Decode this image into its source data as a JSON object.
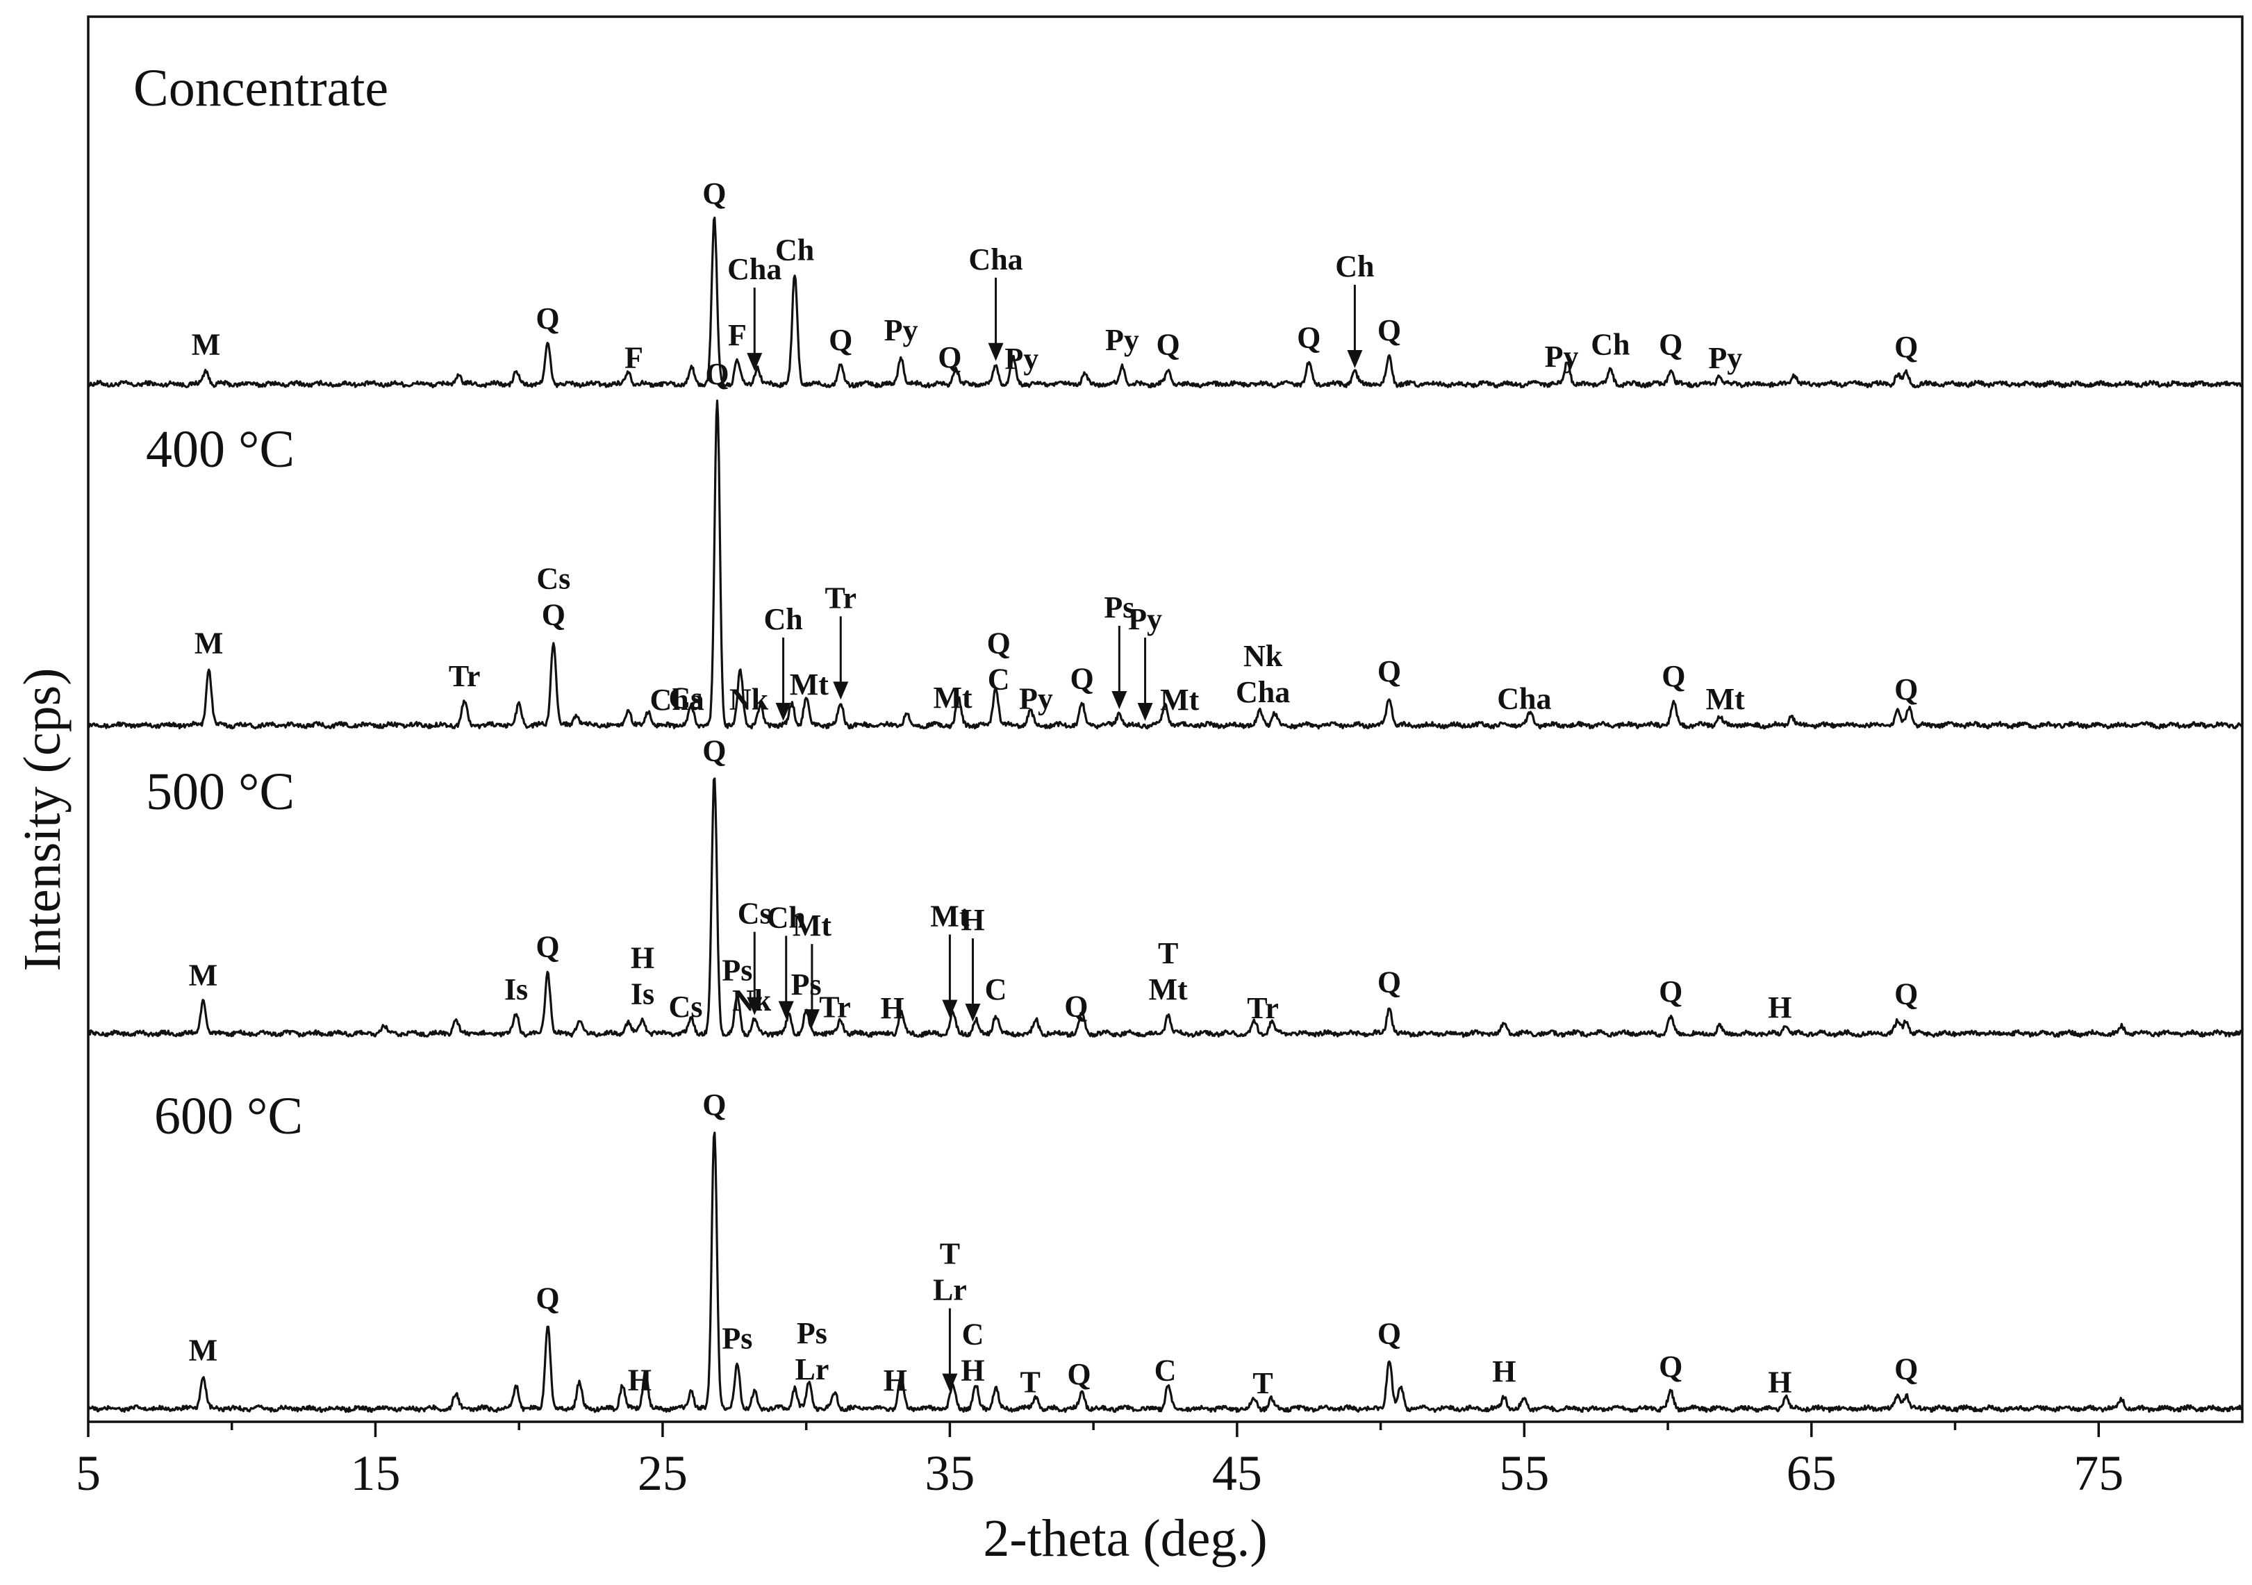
{
  "chart_data": {
    "type": "line",
    "xlabel": "2-theta (deg.)",
    "ylabel": "Intensity (cps)",
    "xlim": [
      5,
      80
    ],
    "x_ticks": [
      "5",
      "15",
      "25",
      "35",
      "45",
      "55",
      "65",
      "75"
    ],
    "grid": false,
    "legend": "none",
    "series": [
      {
        "name": "Concentrate",
        "peaks": [
          [
            9.1,
            0.6
          ],
          [
            17.9,
            0.4
          ],
          [
            19.9,
            0.5
          ],
          [
            21.0,
            1.7
          ],
          [
            23.8,
            0.6
          ],
          [
            26.0,
            0.7
          ],
          [
            26.8,
            7.0
          ],
          [
            27.6,
            1.0
          ],
          [
            28.3,
            0.7
          ],
          [
            29.6,
            4.6
          ],
          [
            31.2,
            0.8
          ],
          [
            33.3,
            1.2
          ],
          [
            35.2,
            0.7
          ],
          [
            36.6,
            0.8
          ],
          [
            37.2,
            1.1
          ],
          [
            39.7,
            0.4
          ],
          [
            41.0,
            0.8
          ],
          [
            42.6,
            0.6
          ],
          [
            47.5,
            0.9
          ],
          [
            49.1,
            0.5
          ],
          [
            50.3,
            1.2
          ],
          [
            56.5,
            1.0
          ],
          [
            58.0,
            0.6
          ],
          [
            60.1,
            0.6
          ],
          [
            61.8,
            0.4
          ],
          [
            64.4,
            0.4
          ],
          [
            68.0,
            0.4
          ],
          [
            68.3,
            0.5
          ]
        ],
        "labels": [
          {
            "text": "M",
            "x": 9.1
          },
          {
            "text": "Q",
            "x": 21.0
          },
          {
            "text": "F",
            "x": 24.0
          },
          {
            "text": "Q",
            "x": 26.8
          },
          {
            "text": "F",
            "x": 27.6
          },
          {
            "text": "Cha",
            "x": 28.2,
            "arrow": true
          },
          {
            "text": "Ch",
            "x": 29.6
          },
          {
            "text": "Q",
            "x": 31.2
          },
          {
            "text": "Py",
            "x": 33.3
          },
          {
            "text": "Q",
            "x": 35.0
          },
          {
            "text": "Cha",
            "x": 36.6,
            "arrow": true
          },
          {
            "text": "Py",
            "x": 37.5
          },
          {
            "text": "Py",
            "x": 41.0
          },
          {
            "text": "Q",
            "x": 42.6
          },
          {
            "text": "Q",
            "x": 47.5
          },
          {
            "text": "Ch",
            "x": 49.1,
            "arrow": true
          },
          {
            "text": "Q",
            "x": 50.3
          },
          {
            "text": "Py",
            "x": 56.3
          },
          {
            "text": "Ch",
            "x": 58.0
          },
          {
            "text": "Q",
            "x": 60.1
          },
          {
            "text": "Py",
            "x": 62.0
          },
          {
            "text": "Q",
            "x": 68.3
          }
        ]
      },
      {
        "name": "400 °C",
        "peaks": [
          [
            9.2,
            2.4
          ],
          [
            18.1,
            1.0
          ],
          [
            20.0,
            0.9
          ],
          [
            21.2,
            3.6
          ],
          [
            22.0,
            0.5
          ],
          [
            23.8,
            0.7
          ],
          [
            24.5,
            0.6
          ],
          [
            26.0,
            0.8
          ],
          [
            26.9,
            13.8
          ],
          [
            27.7,
            2.3
          ],
          [
            28.4,
            0.8
          ],
          [
            29.5,
            0.9
          ],
          [
            30.0,
            1.2
          ],
          [
            31.2,
            0.9
          ],
          [
            33.5,
            0.5
          ],
          [
            35.3,
            1.1
          ],
          [
            36.6,
            1.6
          ],
          [
            37.8,
            0.6
          ],
          [
            39.6,
            0.9
          ],
          [
            40.9,
            0.5
          ],
          [
            42.5,
            0.9
          ],
          [
            45.8,
            0.6
          ],
          [
            46.3,
            0.5
          ],
          [
            50.3,
            1.2
          ],
          [
            55.2,
            0.5
          ],
          [
            60.2,
            1.0
          ],
          [
            61.8,
            0.4
          ],
          [
            64.3,
            0.4
          ],
          [
            68.0,
            0.6
          ],
          [
            68.4,
            0.8
          ]
        ],
        "labels": [
          {
            "text": "M",
            "x": 9.2
          },
          {
            "text": "Tr",
            "x": 18.1
          },
          {
            "text": "Cs",
            "x": 21.2,
            "second": "Q"
          },
          {
            "text": "Cha",
            "x": 25.5
          },
          {
            "text": "Cs",
            "x": 25.8
          },
          {
            "text": "Q",
            "x": 26.9
          },
          {
            "text": "Nk",
            "x": 28.0
          },
          {
            "text": "Ch",
            "x": 29.2,
            "arrow": true
          },
          {
            "text": "Mt",
            "x": 30.1
          },
          {
            "text": "Tr",
            "x": 31.2,
            "arrow": true
          },
          {
            "text": "Mt",
            "x": 35.1
          },
          {
            "text": "Q",
            "x": 36.7,
            "second": "C"
          },
          {
            "text": "Py",
            "x": 38.0
          },
          {
            "text": "Q",
            "x": 39.6
          },
          {
            "text": "Ps",
            "x": 40.9,
            "arrow": true
          },
          {
            "text": "Py",
            "x": 41.8,
            "arrow": true
          },
          {
            "text": "Mt",
            "x": 43.0
          },
          {
            "text": "Nk",
            "x": 45.9,
            "second": "Cha"
          },
          {
            "text": "Q",
            "x": 50.3
          },
          {
            "text": "Cha",
            "x": 55.0
          },
          {
            "text": "Q",
            "x": 60.2
          },
          {
            "text": "Mt",
            "x": 62.0
          },
          {
            "text": "Q",
            "x": 68.3
          }
        ]
      },
      {
        "name": "500 °C",
        "peaks": [
          [
            9.0,
            1.4
          ],
          [
            15.3,
            0.3
          ],
          [
            17.8,
            0.6
          ],
          [
            19.9,
            0.8
          ],
          [
            21.0,
            2.6
          ],
          [
            22.1,
            0.6
          ],
          [
            23.8,
            0.5
          ],
          [
            24.3,
            0.6
          ],
          [
            26.0,
            0.7
          ],
          [
            26.8,
            10.9
          ],
          [
            27.6,
            1.6
          ],
          [
            28.2,
            0.6
          ],
          [
            29.4,
            0.8
          ],
          [
            30.0,
            1.0
          ],
          [
            31.2,
            0.6
          ],
          [
            33.3,
            0.9
          ],
          [
            35.1,
            0.9
          ],
          [
            35.9,
            0.6
          ],
          [
            36.6,
            0.8
          ],
          [
            38.0,
            0.6
          ],
          [
            39.6,
            0.9
          ],
          [
            42.6,
            0.8
          ],
          [
            45.6,
            0.5
          ],
          [
            46.2,
            0.5
          ],
          [
            50.3,
            1.1
          ],
          [
            54.3,
            0.4
          ],
          [
            60.1,
            0.7
          ],
          [
            61.8,
            0.3
          ],
          [
            64.1,
            0.4
          ],
          [
            68.0,
            0.5
          ],
          [
            68.3,
            0.6
          ],
          [
            75.8,
            0.3
          ]
        ],
        "labels": [
          {
            "text": "M",
            "x": 9.0
          },
          {
            "text": "Is",
            "x": 19.9
          },
          {
            "text": "Q",
            "x": 21.0
          },
          {
            "text": "H",
            "x": 24.3,
            "second": "Is"
          },
          {
            "text": "Cs",
            "x": 25.8
          },
          {
            "text": "Q",
            "x": 26.8
          },
          {
            "text": "Ps",
            "x": 27.6
          },
          {
            "text": "Nk",
            "x": 28.1
          },
          {
            "text": "Cs",
            "x": 28.2,
            "arrow": true
          },
          {
            "text": "Ch",
            "x": 29.3,
            "arrow": true
          },
          {
            "text": "Ps",
            "x": 30.0
          },
          {
            "text": "Mt",
            "x": 30.2,
            "arrow": true
          },
          {
            "text": "Tr",
            "x": 31.0
          },
          {
            "text": "H",
            "x": 33.0
          },
          {
            "text": "Mt",
            "x": 35.0,
            "arrow": true
          },
          {
            "text": "H",
            "x": 35.8,
            "arrow": true
          },
          {
            "text": "C",
            "x": 36.6
          },
          {
            "text": "Q",
            "x": 39.4
          },
          {
            "text": "T",
            "x": 42.6,
            "second": "Mt"
          },
          {
            "text": "Tr",
            "x": 45.9
          },
          {
            "text": "Q",
            "x": 50.3
          },
          {
            "text": "Q",
            "x": 60.1
          },
          {
            "text": "H",
            "x": 63.9
          },
          {
            "text": "Q",
            "x": 68.3
          }
        ]
      },
      {
        "name": "600 °C",
        "peaks": [
          [
            9.0,
            1.4
          ],
          [
            17.8,
            0.6
          ],
          [
            19.9,
            1.0
          ],
          [
            21.0,
            3.6
          ],
          [
            22.1,
            1.1
          ],
          [
            23.6,
            1.0
          ],
          [
            24.4,
            1.6
          ],
          [
            26.0,
            0.8
          ],
          [
            26.8,
            11.8
          ],
          [
            27.6,
            1.9
          ],
          [
            28.2,
            0.7
          ],
          [
            29.6,
            0.9
          ],
          [
            30.1,
            1.1
          ],
          [
            31.0,
            0.7
          ],
          [
            33.3,
            1.4
          ],
          [
            35.1,
            1.0
          ],
          [
            35.9,
            1.0
          ],
          [
            36.6,
            0.9
          ],
          [
            38.0,
            0.5
          ],
          [
            39.6,
            0.7
          ],
          [
            42.6,
            1.0
          ],
          [
            45.6,
            0.4
          ],
          [
            46.2,
            0.4
          ],
          [
            50.3,
            2.1
          ],
          [
            50.7,
            0.9
          ],
          [
            54.3,
            0.5
          ],
          [
            55.0,
            0.4
          ],
          [
            60.1,
            0.7
          ],
          [
            64.1,
            0.5
          ],
          [
            68.0,
            0.5
          ],
          [
            68.3,
            0.6
          ],
          [
            75.8,
            0.4
          ]
        ],
        "labels": [
          {
            "text": "M",
            "x": 9.0
          },
          {
            "text": "Q",
            "x": 21.0
          },
          {
            "text": "H",
            "x": 24.2
          },
          {
            "text": "Q",
            "x": 26.8
          },
          {
            "text": "Ps",
            "x": 27.6
          },
          {
            "text": "Ps",
            "x": 30.2,
            "second": "Lr"
          },
          {
            "text": "H",
            "x": 33.1
          },
          {
            "text": "T",
            "x": 35.0,
            "second": "Lr",
            "arrow": true
          },
          {
            "text": "C",
            "x": 35.8,
            "second": "H"
          },
          {
            "text": "T",
            "x": 37.8
          },
          {
            "text": "Q",
            "x": 39.5
          },
          {
            "text": "C",
            "x": 42.5
          },
          {
            "text": "T",
            "x": 45.9
          },
          {
            "text": "Q",
            "x": 50.3
          },
          {
            "text": "H",
            "x": 54.3
          },
          {
            "text": "Q",
            "x": 60.1
          },
          {
            "text": "H",
            "x": 63.9
          },
          {
            "text": "Q",
            "x": 68.3
          }
        ]
      }
    ]
  }
}
